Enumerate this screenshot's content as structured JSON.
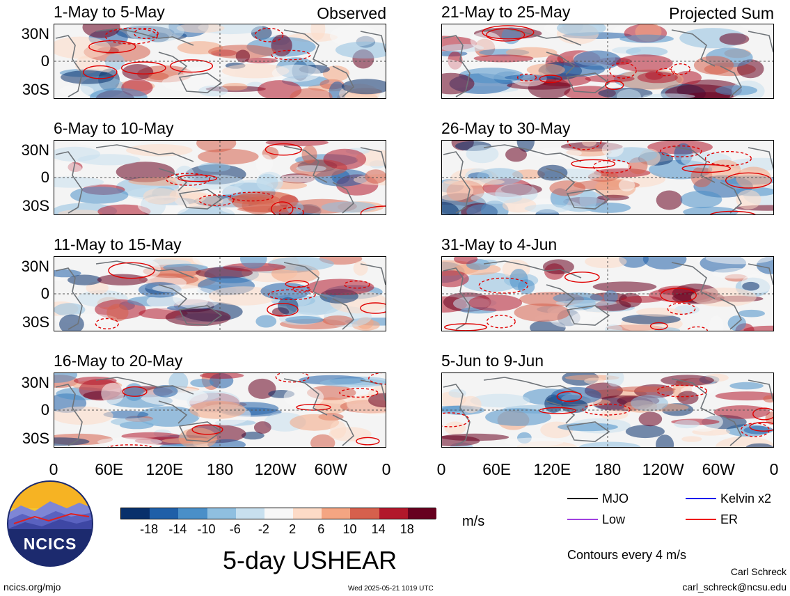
{
  "chart_data": [
    {
      "type": "heatmap",
      "title": "1-May to 5-May",
      "corner_label": "Observed",
      "column": "left",
      "y_ticks": [
        "30N",
        "0",
        "30S"
      ],
      "x_ticks": [],
      "grid": true
    },
    {
      "type": "heatmap",
      "title": "6-May to 10-May",
      "corner_label": "",
      "column": "left",
      "y_ticks": [
        "30N",
        "0",
        "30S"
      ],
      "x_ticks": [],
      "grid": true
    },
    {
      "type": "heatmap",
      "title": "11-May to 15-May",
      "corner_label": "",
      "column": "left",
      "y_ticks": [
        "30N",
        "0",
        "30S"
      ],
      "x_ticks": [],
      "grid": true
    },
    {
      "type": "heatmap",
      "title": "16-May to 20-May",
      "corner_label": "",
      "column": "left",
      "y_ticks": [
        "30N",
        "0",
        "30S"
      ],
      "x_ticks": [
        "0",
        "60E",
        "120E",
        "180",
        "120W",
        "60W",
        "0"
      ],
      "grid": true
    },
    {
      "type": "heatmap",
      "title": "21-May to 25-May",
      "corner_label": "Projected Sum",
      "column": "right",
      "y_ticks": [],
      "x_ticks": [],
      "grid": true
    },
    {
      "type": "heatmap",
      "title": "26-May to 30-May",
      "corner_label": "",
      "column": "right",
      "y_ticks": [],
      "x_ticks": [],
      "grid": true
    },
    {
      "type": "heatmap",
      "title": "31-May to 4-Jun",
      "corner_label": "",
      "column": "right",
      "y_ticks": [],
      "x_ticks": [],
      "grid": true
    },
    {
      "type": "heatmap",
      "title": "5-Jun to 9-Jun",
      "corner_label": "",
      "column": "right",
      "y_ticks": [],
      "x_ticks": [
        "0",
        "60E",
        "120E",
        "180",
        "120W",
        "60W",
        "0"
      ],
      "grid": true
    }
  ],
  "colorbar": {
    "unit": "m/s",
    "labels": [
      "-18",
      "-14",
      "-10",
      "-6",
      "-2",
      "2",
      "6",
      "10",
      "14",
      "18"
    ],
    "colors": [
      "#08306b",
      "#1f5fa8",
      "#4a8fc8",
      "#8fbfe0",
      "#c8e0ef",
      "#f7f7f7",
      "#fddbc7",
      "#f4a582",
      "#d6604d",
      "#b2182b",
      "#67001f"
    ]
  },
  "legend": {
    "items": [
      {
        "label": "MJO",
        "color": "#000000"
      },
      {
        "label": "Kelvin x2",
        "color": "#0000ee"
      },
      {
        "label": "Low",
        "color": "#a040e0"
      },
      {
        "label": "ER",
        "color": "#ee0000"
      }
    ],
    "contours_note": "Contours every 4 m/s"
  },
  "main_title": "5-day USHEAR",
  "logo": {
    "text": "NCICS"
  },
  "footer": {
    "url": "ncics.org/mjo",
    "timestamp": "Wed 2025-05-21 1019 UTC",
    "author": "Carl Schreck",
    "email": "carl_schreck@ncsu.edu"
  }
}
